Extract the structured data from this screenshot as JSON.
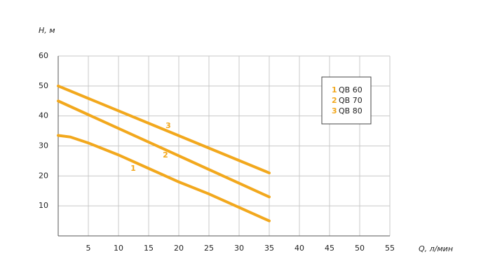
{
  "chart_data": {
    "type": "line",
    "xlabel": "Q, л/мин",
    "ylabel": "H, м",
    "xlim": [
      0,
      55
    ],
    "ylim": [
      0,
      60
    ],
    "xticks": [
      5,
      10,
      15,
      20,
      25,
      30,
      35,
      40,
      45,
      50,
      55
    ],
    "yticks": [
      10,
      20,
      30,
      40,
      50,
      60
    ],
    "grid": true,
    "series": [
      {
        "name": "QB 60",
        "label": "1",
        "color": "#f2a81d",
        "x": [
          0,
          2,
          5,
          10,
          15,
          20,
          25,
          30,
          35
        ],
        "values": [
          33.5,
          33,
          31,
          27,
          22.5,
          18,
          14,
          9.5,
          5
        ]
      },
      {
        "name": "QB 70",
        "label": "2",
        "color": "#f2a81d",
        "x": [
          0,
          35
        ],
        "values": [
          45,
          13
        ]
      },
      {
        "name": "QB 80",
        "label": "3",
        "color": "#f2a81d",
        "x": [
          0,
          35
        ],
        "values": [
          50,
          21
        ]
      }
    ]
  }
}
